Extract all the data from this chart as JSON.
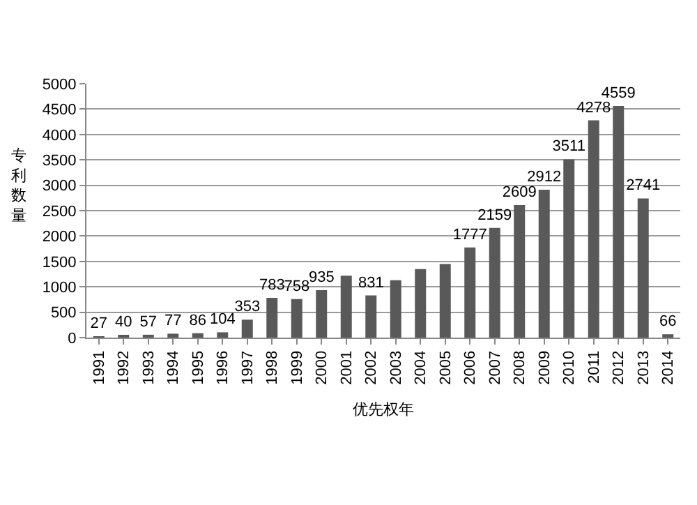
{
  "chart_data": {
    "type": "bar",
    "xlabel": "优先权年",
    "ylabel": "专利数量",
    "categories": [
      "1991",
      "1992",
      "1993",
      "1994",
      "1995",
      "1996",
      "1997",
      "1998",
      "1999",
      "2000",
      "2001",
      "2002",
      "2003",
      "2004",
      "2005",
      "2006",
      "2007",
      "2008",
      "2009",
      "2010",
      "2011",
      "2012",
      "2013",
      "2014"
    ],
    "values": [
      27,
      40,
      57,
      77,
      86,
      104,
      353,
      783,
      758,
      935,
      1220,
      831,
      1130,
      1350,
      1450,
      1777,
      2159,
      2609,
      2912,
      3511,
      4278,
      4559,
      2741,
      66
    ],
    "value_labels": [
      "27",
      "40",
      "57",
      "77",
      "86",
      "104",
      "353",
      "783",
      "758",
      "935",
      null,
      "831",
      null,
      null,
      null,
      "1777",
      "2159",
      "2609",
      "2912",
      "3511",
      "4278",
      "4559",
      "2741",
      "66"
    ],
    "color": "#595959",
    "ylim": [
      0,
      5000
    ],
    "yticks": [
      0,
      500,
      1000,
      1500,
      2000,
      2500,
      3000,
      3500,
      4000,
      4500,
      5000
    ],
    "grid": "y"
  }
}
